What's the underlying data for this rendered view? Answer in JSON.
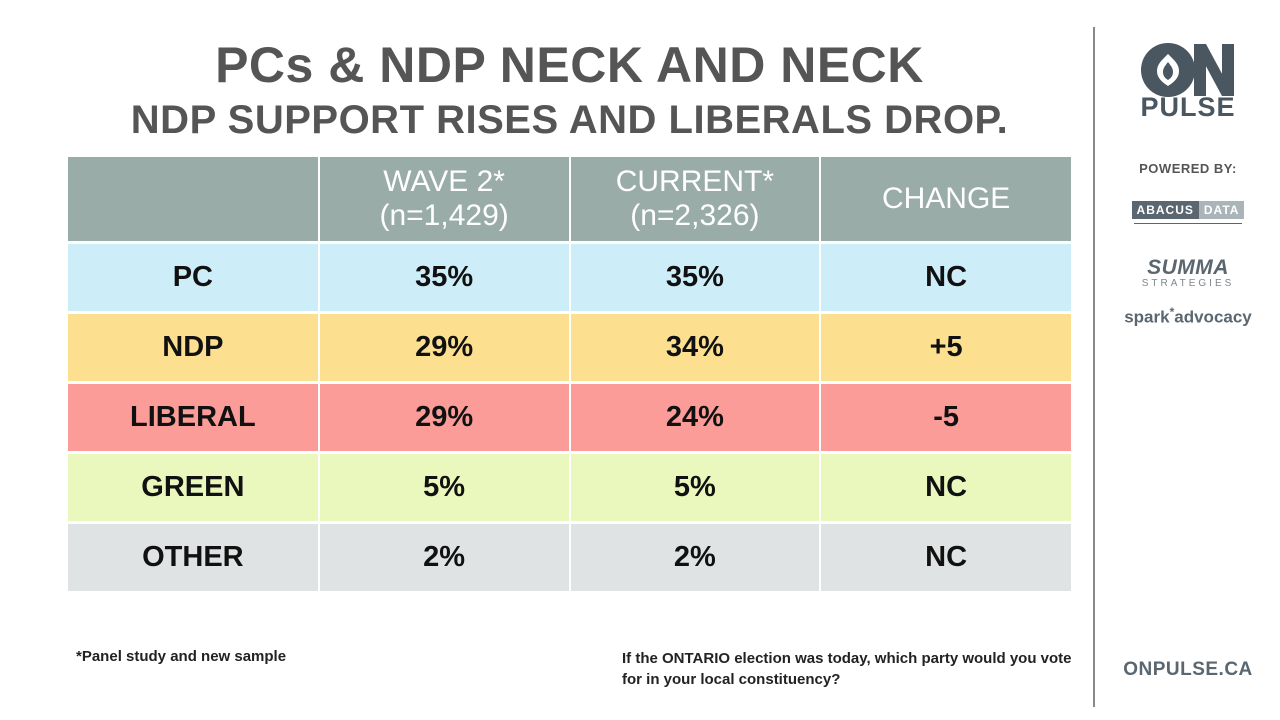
{
  "title": "PCs & NDP NECK AND NECK",
  "subtitle": "NDP SUPPORT RISES AND LIBERALS DROP.",
  "chart_data": {
    "type": "table",
    "columns": [
      {
        "line1": "",
        "line2": ""
      },
      {
        "line1": "WAVE 2*",
        "line2": "(n=1,429)"
      },
      {
        "line1": "CURRENT*",
        "line2": "(n=2,326)"
      },
      {
        "line1": "CHANGE",
        "line2": ""
      }
    ],
    "rows": [
      {
        "party": "PC",
        "wave2": "35%",
        "current": "35%",
        "change": "NC",
        "color": "#cdeef9"
      },
      {
        "party": "NDP",
        "wave2": "29%",
        "current": "34%",
        "change": "+5",
        "color": "#fde08f"
      },
      {
        "party": "LIBERAL",
        "wave2": "29%",
        "current": "24%",
        "change": "-5",
        "color": "#fb9c98"
      },
      {
        "party": "GREEN",
        "wave2": "5%",
        "current": "5%",
        "change": "NC",
        "color": "#eaf7bd"
      },
      {
        "party": "OTHER",
        "wave2": "2%",
        "current": "2%",
        "change": "NC",
        "color": "#dfe3e3"
      }
    ]
  },
  "footnote": "*Panel study and new sample",
  "question": "If the ONTARIO election was today, which party would you vote for in your local constituency?",
  "sidebar": {
    "logo_letters": "ON",
    "logo_word": "PULSE",
    "powered_by": "POWERED BY:",
    "abacus_left": "ABACUS",
    "abacus_right": "DATA",
    "summa": "SUMMA",
    "summa_sub": "STRATEGIES",
    "spark_left": "spark",
    "spark_star": "*",
    "spark_right": "advocacy",
    "website": "ONPULSE.CA"
  },
  "colors": {
    "header_bg": "#9aaca8",
    "title_text": "#555555",
    "brand": "#4a5760"
  }
}
